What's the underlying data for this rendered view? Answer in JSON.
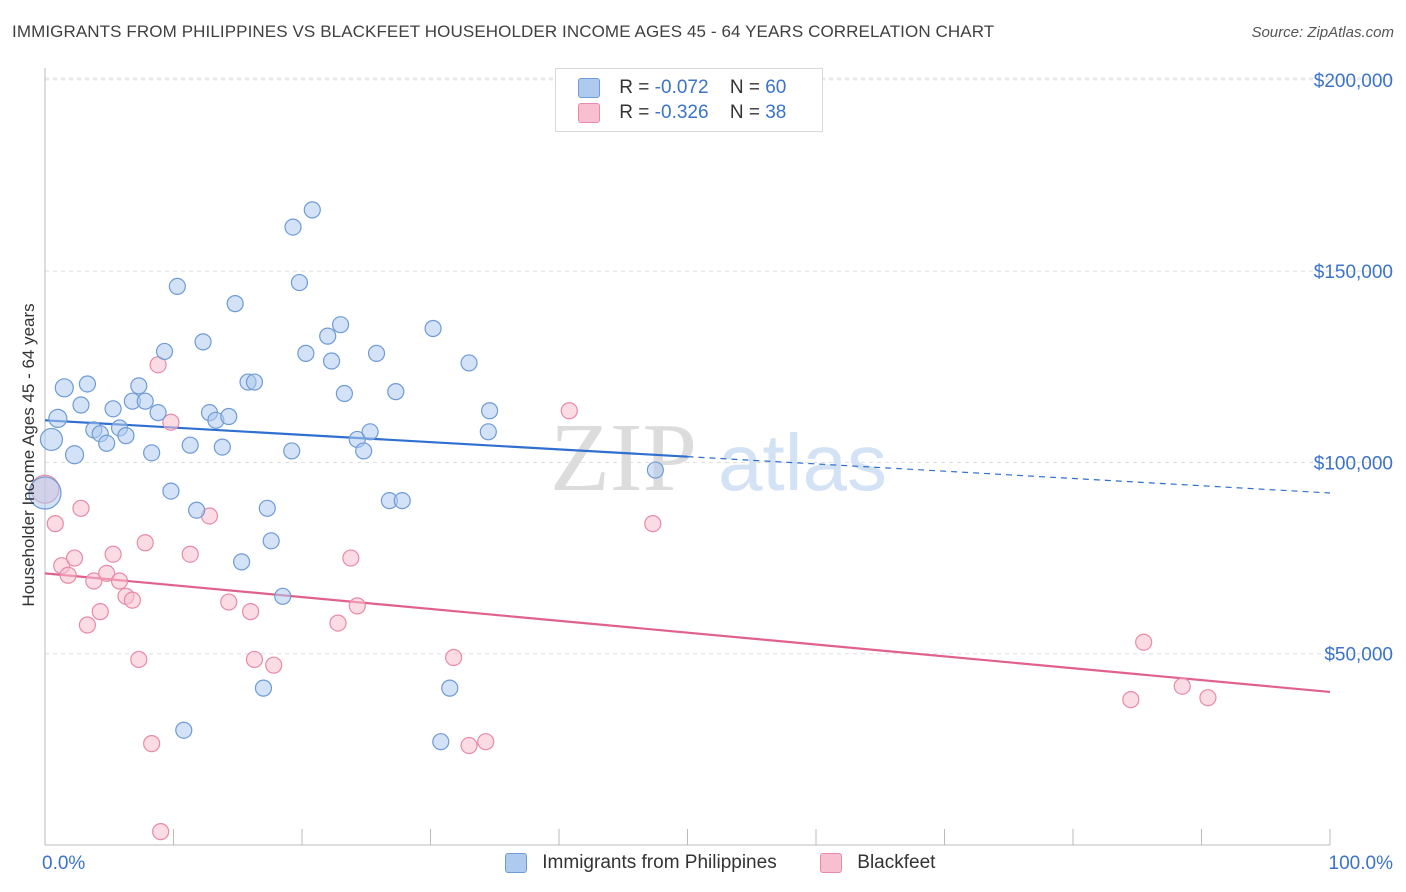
{
  "title": "IMMIGRANTS FROM PHILIPPINES VS BLACKFEET HOUSEHOLDER INCOME AGES 45 - 64 YEARS CORRELATION CHART",
  "source": "Source: ZipAtlas.com",
  "watermark": {
    "zip": "ZIP",
    "atlas": "atlas"
  },
  "legend": {
    "r_label": "R =",
    "n_label": "N =",
    "rows": [
      {
        "r": "-0.072",
        "n": "60"
      },
      {
        "r": "-0.326",
        "n": "38"
      }
    ]
  },
  "colors": {
    "blue_fill": "#aecbef",
    "blue_stroke": "#6f9bd6",
    "blue_line": "#2f6fcf",
    "pink_fill": "#f7bfd0",
    "pink_stroke": "#e88aa8",
    "pink_line": "#e0608e",
    "axis_text": "#3b73c9",
    "grid": "#dddddd"
  },
  "chart_data": {
    "type": "scatter",
    "title": "IMMIGRANTS FROM PHILIPPINES VS BLACKFEET HOUSEHOLDER INCOME AGES 45 - 64 YEARS CORRELATION CHART",
    "xlabel": "",
    "ylabel": "Householder Income Ages 45 - 64 years",
    "xlim": [
      0,
      100
    ],
    "ylim": [
      0,
      205000
    ],
    "x_tick_labels": [
      "0.0%",
      "100.0%"
    ],
    "y_ticks": [
      50000,
      100000,
      150000,
      200000
    ],
    "y_tick_labels": [
      "$50,000",
      "$100,000",
      "$150,000",
      "$200,000"
    ],
    "grid": true,
    "legend_position": "top-center",
    "series": [
      {
        "name": "Immigrants from Philippines",
        "r": -0.072,
        "n": 60,
        "trend": {
          "x0": 0,
          "y0": 111000,
          "x1": 50,
          "y1": 101500,
          "dash_to_x": 100,
          "dash_to_y": 92000
        },
        "points": [
          [
            0.0,
            92000,
            16
          ],
          [
            0.5,
            106000,
            11
          ],
          [
            1.0,
            111500,
            9
          ],
          [
            1.5,
            119500,
            9
          ],
          [
            2.3,
            102000,
            9
          ],
          [
            2.8,
            115000,
            8
          ],
          [
            3.3,
            120500,
            8
          ],
          [
            3.8,
            108500,
            8
          ],
          [
            4.3,
            107500,
            8
          ],
          [
            4.8,
            105000,
            8
          ],
          [
            5.3,
            114000,
            8
          ],
          [
            5.8,
            109000,
            8
          ],
          [
            6.3,
            107000,
            8
          ],
          [
            6.8,
            116000,
            8
          ],
          [
            7.3,
            120000,
            8
          ],
          [
            7.8,
            116000,
            8
          ],
          [
            8.3,
            102500,
            8
          ],
          [
            8.8,
            113000,
            8
          ],
          [
            9.3,
            129000,
            8
          ],
          [
            9.8,
            92500,
            8
          ],
          [
            10.3,
            146000,
            8
          ],
          [
            11.3,
            104500,
            8
          ],
          [
            11.8,
            87500,
            8
          ],
          [
            12.3,
            131500,
            8
          ],
          [
            12.8,
            113000,
            8
          ],
          [
            13.3,
            111000,
            8
          ],
          [
            13.8,
            104000,
            8
          ],
          [
            14.3,
            112000,
            8
          ],
          [
            14.8,
            141500,
            8
          ],
          [
            15.3,
            74000,
            8
          ],
          [
            15.8,
            121000,
            8
          ],
          [
            16.3,
            121000,
            8
          ],
          [
            17.0,
            41000,
            8
          ],
          [
            17.3,
            88000,
            8
          ],
          [
            17.6,
            79500,
            8
          ],
          [
            18.5,
            65000,
            8
          ],
          [
            19.2,
            103000,
            8
          ],
          [
            19.3,
            161500,
            8
          ],
          [
            19.8,
            147000,
            8
          ],
          [
            20.3,
            128500,
            8
          ],
          [
            20.8,
            166000,
            8
          ],
          [
            22.0,
            133000,
            8
          ],
          [
            22.3,
            126500,
            8
          ],
          [
            23.0,
            136000,
            8
          ],
          [
            23.3,
            118000,
            8
          ],
          [
            24.3,
            106000,
            8
          ],
          [
            24.8,
            103000,
            8
          ],
          [
            25.3,
            108000,
            8
          ],
          [
            25.8,
            128500,
            8
          ],
          [
            26.8,
            90000,
            8
          ],
          [
            27.3,
            118500,
            8
          ],
          [
            27.8,
            90000,
            8
          ],
          [
            30.2,
            135000,
            8
          ],
          [
            30.8,
            27000,
            8
          ],
          [
            31.5,
            41000,
            8
          ],
          [
            33.0,
            126000,
            8
          ],
          [
            34.5,
            108000,
            8
          ],
          [
            34.6,
            113500,
            8
          ],
          [
            10.8,
            30000,
            8
          ],
          [
            47.5,
            98000,
            8
          ]
        ]
      },
      {
        "name": "Blackfeet",
        "r": -0.326,
        "n": 38,
        "trend": {
          "x0": 0,
          "y0": 71000,
          "x1": 100,
          "y1": 40000
        },
        "points": [
          [
            0.0,
            93000,
            14
          ],
          [
            0.8,
            84000,
            8
          ],
          [
            1.3,
            73000,
            8
          ],
          [
            1.8,
            70500,
            8
          ],
          [
            2.3,
            75000,
            8
          ],
          [
            2.8,
            88000,
            8
          ],
          [
            3.3,
            57500,
            8
          ],
          [
            3.8,
            69000,
            8
          ],
          [
            4.3,
            61000,
            8
          ],
          [
            4.8,
            71000,
            8
          ],
          [
            5.3,
            76000,
            8
          ],
          [
            5.8,
            69000,
            8
          ],
          [
            6.3,
            65000,
            8
          ],
          [
            6.8,
            64000,
            8
          ],
          [
            7.3,
            48500,
            8
          ],
          [
            7.8,
            79000,
            8
          ],
          [
            8.3,
            26500,
            8
          ],
          [
            8.8,
            125500,
            8
          ],
          [
            9.0,
            3500,
            8
          ],
          [
            9.8,
            110500,
            8
          ],
          [
            11.3,
            76000,
            8
          ],
          [
            12.8,
            86000,
            8
          ],
          [
            14.3,
            63500,
            8
          ],
          [
            16.0,
            61000,
            8
          ],
          [
            16.3,
            48500,
            8
          ],
          [
            17.8,
            47000,
            8
          ],
          [
            22.8,
            58000,
            8
          ],
          [
            23.8,
            75000,
            8
          ],
          [
            24.3,
            62500,
            8
          ],
          [
            31.8,
            49000,
            8
          ],
          [
            33.0,
            26000,
            8
          ],
          [
            34.3,
            27000,
            8
          ],
          [
            40.8,
            113500,
            8
          ],
          [
            47.3,
            84000,
            8
          ],
          [
            84.5,
            38000,
            8
          ],
          [
            85.5,
            53000,
            8
          ],
          [
            88.5,
            41500,
            8
          ],
          [
            90.5,
            38500,
            8
          ]
        ]
      }
    ]
  }
}
